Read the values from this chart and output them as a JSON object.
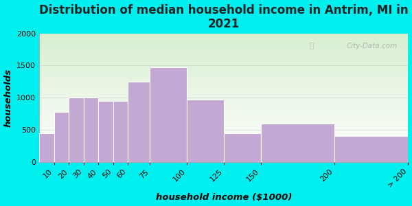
{
  "title": "Distribution of median household income in Antrim, MI in\n2021",
  "xlabel": "household income ($1000)",
  "ylabel": "households",
  "bin_edges": [
    0,
    10,
    20,
    30,
    40,
    50,
    60,
    75,
    100,
    125,
    150,
    200,
    250
  ],
  "tick_labels": [
    "10",
    "20",
    "30",
    "40",
    "50",
    "60",
    "75",
    "100",
    "125",
    "150",
    "200",
    "> 200"
  ],
  "values": [
    450,
    780,
    1000,
    1000,
    950,
    950,
    1250,
    1475,
    975,
    450,
    600,
    400
  ],
  "bar_color": "#C4A8D4",
  "bar_edge_color": "#C4A8D4",
  "outer_bg": "#00EFEF",
  "ylim": [
    0,
    2000
  ],
  "yticks": [
    0,
    500,
    1000,
    1500,
    2000
  ],
  "title_fontsize": 12,
  "label_fontsize": 9.5,
  "tick_fontsize": 8,
  "watermark": "City-Data.com"
}
